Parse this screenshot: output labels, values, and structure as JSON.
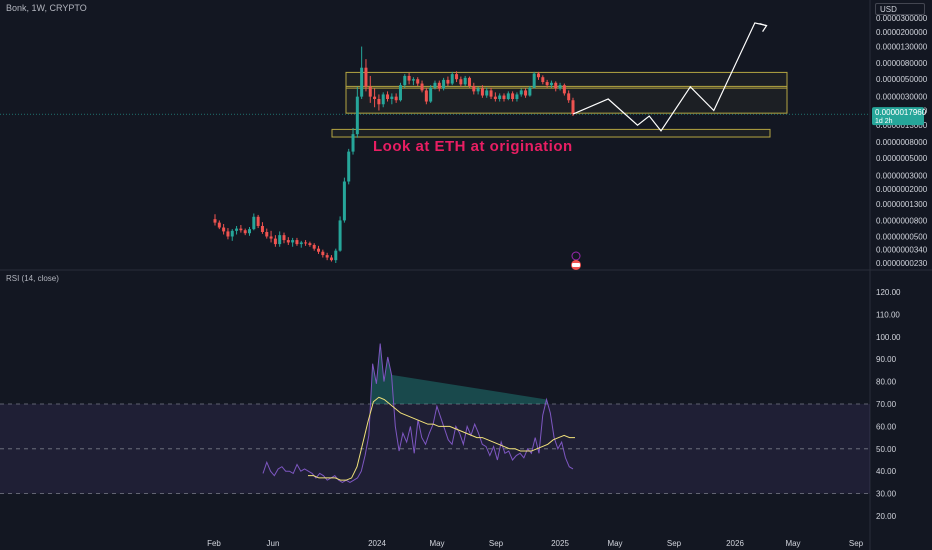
{
  "header": {
    "symbol_line": "Bonk, 1W, CRYPTO"
  },
  "currency": "USD",
  "annotation": {
    "text": "Look at ETH at origination",
    "color": "#e91e63"
  },
  "colors": {
    "bg": "#131722",
    "up": "#26a69a",
    "down": "#ef5350",
    "box": "#b5a642",
    "rsi": "#7e57c2",
    "rsi_ma": "#f2e27a",
    "rsi_band": "#7e57c2",
    "projection": "#ffffff"
  },
  "chart_data": [
    {
      "type": "candlestick",
      "title": "Bonk, 1W, CRYPTO",
      "y_scale": "log",
      "y_ticks": [
        "0.0000300000",
        "0.0000200000",
        "0.0000130000",
        "0.0000080000",
        "0.0000050000",
        "0.0000030000",
        "0.0000020000",
        "0.0000013000",
        "0.0000008000",
        "0.0000005000",
        "0.0000003000",
        "0.0000002000",
        "0.0000001300",
        "0.0000000800",
        "0.0000000500",
        "0.0000000340",
        "0.0000000230"
      ],
      "x_ticks": [
        "Feb",
        "Jun",
        "2024",
        "May",
        "Sep",
        "2025",
        "May",
        "Sep",
        "2026",
        "May",
        "Sep"
      ],
      "last_price": "0.0000017960",
      "last_price_sub": "1d 2h",
      "candles": [
        {
          "o": 8.3e-08,
          "h": 9.6e-08,
          "l": 6.9e-08,
          "c": 7.5e-08
        },
        {
          "o": 7.5e-08,
          "h": 8e-08,
          "l": 6.2e-08,
          "c": 6.5e-08
        },
        {
          "o": 6.5e-08,
          "h": 7.2e-08,
          "l": 5.3e-08,
          "c": 5.8e-08
        },
        {
          "o": 5.8e-08,
          "h": 6.4e-08,
          "l": 4.6e-08,
          "c": 5e-08
        },
        {
          "o": 5e-08,
          "h": 6.2e-08,
          "l": 4.4e-08,
          "c": 5.9e-08
        },
        {
          "o": 5.9e-08,
          "h": 6.8e-08,
          "l": 5.3e-08,
          "c": 6.3e-08
        },
        {
          "o": 6.3e-08,
          "h": 7e-08,
          "l": 5.6e-08,
          "c": 6e-08
        },
        {
          "o": 6e-08,
          "h": 6.3e-08,
          "l": 5.2e-08,
          "c": 5.5e-08
        },
        {
          "o": 5.5e-08,
          "h": 6.6e-08,
          "l": 5.1e-08,
          "c": 6.2e-08
        },
        {
          "o": 6.2e-08,
          "h": 9.8e-08,
          "l": 6e-08,
          "c": 8.9e-08
        },
        {
          "o": 8.9e-08,
          "h": 9.4e-08,
          "l": 6.4e-08,
          "c": 6.8e-08
        },
        {
          "o": 6.8e-08,
          "h": 7.6e-08,
          "l": 5.4e-08,
          "c": 5.7e-08
        },
        {
          "o": 5.7e-08,
          "h": 6.3e-08,
          "l": 4.7e-08,
          "c": 5e-08
        },
        {
          "o": 5e-08,
          "h": 5.9e-08,
          "l": 4.2e-08,
          "c": 4.7e-08
        },
        {
          "o": 4.7e-08,
          "h": 5.2e-08,
          "l": 3.7e-08,
          "c": 4e-08
        },
        {
          "o": 4e-08,
          "h": 5.8e-08,
          "l": 3.7e-08,
          "c": 5.2e-08
        },
        {
          "o": 5.2e-08,
          "h": 5.6e-08,
          "l": 4.1e-08,
          "c": 4.5e-08
        },
        {
          "o": 4.5e-08,
          "h": 4.9e-08,
          "l": 3.9e-08,
          "c": 4.2e-08
        },
        {
          "o": 4.2e-08,
          "h": 4.8e-08,
          "l": 3.7e-08,
          "c": 4.5e-08
        },
        {
          "o": 4.5e-08,
          "h": 4.8e-08,
          "l": 3.8e-08,
          "c": 4e-08
        },
        {
          "o": 4e-08,
          "h": 4.4e-08,
          "l": 3.6e-08,
          "c": 4.2e-08
        },
        {
          "o": 4.2e-08,
          "h": 4.5e-08,
          "l": 3.8e-08,
          "c": 4.1e-08
        },
        {
          "o": 4.1e-08,
          "h": 4.3e-08,
          "l": 3.7e-08,
          "c": 3.9e-08
        },
        {
          "o": 3.9e-08,
          "h": 4.1e-08,
          "l": 3.3e-08,
          "c": 3.5e-08
        },
        {
          "o": 3.5e-08,
          "h": 3.8e-08,
          "l": 3e-08,
          "c": 3.2e-08
        },
        {
          "o": 3.2e-08,
          "h": 3.4e-08,
          "l": 2.7e-08,
          "c": 2.9e-08
        },
        {
          "o": 2.9e-08,
          "h": 3.1e-08,
          "l": 2.5e-08,
          "c": 2.7e-08
        },
        {
          "o": 2.7e-08,
          "h": 2.9e-08,
          "l": 2.4e-08,
          "c": 2.5e-08
        },
        {
          "o": 2.5e-08,
          "h": 3.5e-08,
          "l": 2.3e-08,
          "c": 3.3e-08
        },
        {
          "o": 3.3e-08,
          "h": 9e-08,
          "l": 3.2e-08,
          "c": 8e-08
        },
        {
          "o": 8e-08,
          "h": 2.8e-07,
          "l": 7.5e-08,
          "c": 2.5e-07
        },
        {
          "o": 2.5e-07,
          "h": 6.5e-07,
          "l": 2.3e-07,
          "c": 6e-07
        },
        {
          "o": 6e-07,
          "h": 1.2e-06,
          "l": 5.5e-07,
          "c": 1e-06
        },
        {
          "o": 1e-06,
          "h": 4e-06,
          "l": 9e-07,
          "c": 3e-06
        },
        {
          "o": 3e-06,
          "h": 1.3e-05,
          "l": 2.8e-06,
          "c": 7e-06
        },
        {
          "o": 7e-06,
          "h": 9e-06,
          "l": 3.5e-06,
          "c": 4e-06
        },
        {
          "o": 4e-06,
          "h": 5.5e-06,
          "l": 2.5e-06,
          "c": 3e-06
        },
        {
          "o": 3e-06,
          "h": 3.8e-06,
          "l": 2.2e-06,
          "c": 2.8e-06
        },
        {
          "o": 2.8e-06,
          "h": 3.2e-06,
          "l": 2e-06,
          "c": 2.4e-06
        },
        {
          "o": 2.4e-06,
          "h": 3.4e-06,
          "l": 2.2e-06,
          "c": 3.2e-06
        },
        {
          "o": 3.2e-06,
          "h": 3.5e-06,
          "l": 2.6e-06,
          "c": 2.8e-06
        },
        {
          "o": 2.8e-06,
          "h": 3.3e-06,
          "l": 2.4e-06,
          "c": 3e-06
        },
        {
          "o": 3e-06,
          "h": 3.3e-06,
          "l": 2.5e-06,
          "c": 2.7e-06
        },
        {
          "o": 2.7e-06,
          "h": 4.5e-06,
          "l": 2.6e-06,
          "c": 4.2e-06
        },
        {
          "o": 4.2e-06,
          "h": 5.8e-06,
          "l": 3.9e-06,
          "c": 5.5e-06
        },
        {
          "o": 5.5e-06,
          "h": 6e-06,
          "l": 4.3e-06,
          "c": 4.8e-06
        },
        {
          "o": 4.8e-06,
          "h": 5.3e-06,
          "l": 4.2e-06,
          "c": 5e-06
        },
        {
          "o": 5e-06,
          "h": 5.3e-06,
          "l": 4.1e-06,
          "c": 4.4e-06
        },
        {
          "o": 4.4e-06,
          "h": 4.8e-06,
          "l": 3.4e-06,
          "c": 3.6e-06
        },
        {
          "o": 3.6e-06,
          "h": 3.9e-06,
          "l": 2.4e-06,
          "c": 2.6e-06
        },
        {
          "o": 2.6e-06,
          "h": 4.2e-06,
          "l": 2.5e-06,
          "c": 3.9e-06
        },
        {
          "o": 3.9e-06,
          "h": 4.8e-06,
          "l": 3.7e-06,
          "c": 4.5e-06
        },
        {
          "o": 4.5e-06,
          "h": 4.8e-06,
          "l": 3.5e-06,
          "c": 3.8e-06
        },
        {
          "o": 3.8e-06,
          "h": 5.2e-06,
          "l": 3.6e-06,
          "c": 4.9e-06
        },
        {
          "o": 4.9e-06,
          "h": 5.4e-06,
          "l": 4.1e-06,
          "c": 4.4e-06
        },
        {
          "o": 4.4e-06,
          "h": 6.2e-06,
          "l": 4.2e-06,
          "c": 5.8e-06
        },
        {
          "o": 5.8e-06,
          "h": 6.3e-06,
          "l": 4.6e-06,
          "c": 5e-06
        },
        {
          "o": 5e-06,
          "h": 5.4e-06,
          "l": 4e-06,
          "c": 4.3e-06
        },
        {
          "o": 4.3e-06,
          "h": 5.5e-06,
          "l": 4.1e-06,
          "c": 5.2e-06
        },
        {
          "o": 5.2e-06,
          "h": 5.4e-06,
          "l": 3.9e-06,
          "c": 4.1e-06
        },
        {
          "o": 4.1e-06,
          "h": 4.5e-06,
          "l": 3.2e-06,
          "c": 3.5e-06
        },
        {
          "o": 3.5e-06,
          "h": 4e-06,
          "l": 3.2e-06,
          "c": 3.8e-06
        },
        {
          "o": 3.8e-06,
          "h": 4.2e-06,
          "l": 2.9e-06,
          "c": 3.1e-06
        },
        {
          "o": 3.1e-06,
          "h": 3.9e-06,
          "l": 2.9e-06,
          "c": 3.6e-06
        },
        {
          "o": 3.6e-06,
          "h": 3.9e-06,
          "l": 2.8e-06,
          "c": 3e-06
        },
        {
          "o": 3e-06,
          "h": 3.4e-06,
          "l": 2.6e-06,
          "c": 2.8e-06
        },
        {
          "o": 2.8e-06,
          "h": 3.3e-06,
          "l": 2.6e-06,
          "c": 3.1e-06
        },
        {
          "o": 3.1e-06,
          "h": 3.3e-06,
          "l": 2.6e-06,
          "c": 2.8e-06
        },
        {
          "o": 2.8e-06,
          "h": 3.5e-06,
          "l": 2.7e-06,
          "c": 3.3e-06
        },
        {
          "o": 3.3e-06,
          "h": 3.5e-06,
          "l": 2.6e-06,
          "c": 2.8e-06
        },
        {
          "o": 2.8e-06,
          "h": 3.4e-06,
          "l": 2.6e-06,
          "c": 3.2e-06
        },
        {
          "o": 3.2e-06,
          "h": 3.8e-06,
          "l": 3e-06,
          "c": 3.6e-06
        },
        {
          "o": 3.6e-06,
          "h": 3.8e-06,
          "l": 2.9e-06,
          "c": 3.1e-06
        },
        {
          "o": 3.1e-06,
          "h": 4.1e-06,
          "l": 3e-06,
          "c": 3.9e-06
        },
        {
          "o": 3.9e-06,
          "h": 6.2e-06,
          "l": 3.8e-06,
          "c": 5.9e-06
        },
        {
          "o": 5.9e-06,
          "h": 6.2e-06,
          "l": 4.9e-06,
          "c": 5.3e-06
        },
        {
          "o": 5.3e-06,
          "h": 5.6e-06,
          "l": 4.3e-06,
          "c": 4.6e-06
        },
        {
          "o": 4.6e-06,
          "h": 4.9e-06,
          "l": 3.9e-06,
          "c": 4.2e-06
        },
        {
          "o": 4.2e-06,
          "h": 4.8e-06,
          "l": 3.9e-06,
          "c": 4.5e-06
        },
        {
          "o": 4.5e-06,
          "h": 4.7e-06,
          "l": 3.5e-06,
          "c": 3.8e-06
        },
        {
          "o": 3.8e-06,
          "h": 4.5e-06,
          "l": 3.6e-06,
          "c": 4.2e-06
        },
        {
          "o": 4.2e-06,
          "h": 4.4e-06,
          "l": 3.1e-06,
          "c": 3.3e-06
        },
        {
          "o": 3.3e-06,
          "h": 3.6e-06,
          "l": 2.5e-06,
          "c": 2.7e-06
        },
        {
          "o": 2.7e-06,
          "h": 2.9e-06,
          "l": 1.7e-06,
          "c": 1.8e-06
        }
      ],
      "zones": [
        {
          "top": 6.1e-06,
          "bottom": 1.85e-06
        },
        {
          "top": 4.05e-06,
          "bottom": 3.85e-06
        },
        {
          "top": 1.15e-06,
          "bottom": 9.2e-07
        }
      ],
      "projection": [
        [
          0,
          1.8e-06
        ],
        [
          6,
          2.8e-06
        ],
        [
          11,
          1.3e-06
        ],
        [
          13,
          1.7e-06
        ],
        [
          15,
          1.1e-06
        ],
        [
          20,
          4e-06
        ],
        [
          24,
          2e-06
        ],
        [
          31,
          2.6e-05
        ],
        [
          33,
          2.4e-05
        ]
      ]
    },
    {
      "type": "line",
      "title": "RSI (14, close)",
      "y_ticks": [
        "120.00",
        "110.00",
        "100.00",
        "90.00",
        "80.00",
        "70.00",
        "60.00",
        "50.00",
        "40.00",
        "30.00",
        "20.00"
      ],
      "bands": {
        "upper": 70,
        "middle": 50,
        "lower": 30
      },
      "series": [
        {
          "values": [
            39,
            44,
            40,
            38,
            41,
            42,
            40,
            40,
            39,
            43,
            40,
            41,
            40,
            39,
            37,
            39,
            38,
            36,
            37,
            38,
            36,
            35,
            36,
            35,
            36,
            37,
            40,
            47,
            56,
            88,
            79,
            97,
            80,
            91,
            83,
            60,
            49,
            57,
            53,
            60,
            48,
            63,
            55,
            52,
            57,
            61,
            69,
            64,
            59,
            54,
            52,
            60,
            57,
            52,
            60,
            56,
            61,
            57,
            52,
            51,
            47,
            51,
            45,
            53,
            48,
            49,
            45,
            47,
            48,
            46,
            50,
            48,
            55,
            48,
            65,
            72,
            66,
            55,
            50,
            53,
            46,
            42,
            41
          ]
        },
        {
          "values": [
            38,
            38,
            37,
            37,
            37,
            37,
            36,
            36,
            37,
            42,
            52,
            62,
            71,
            73,
            72,
            70,
            68,
            66,
            65,
            64,
            63,
            62,
            61,
            61,
            60,
            60,
            60,
            59,
            58,
            57,
            56,
            55,
            55,
            54,
            53,
            52,
            51,
            50,
            50,
            49,
            49,
            49,
            50,
            51,
            52,
            54,
            55,
            56,
            55,
            55
          ]
        }
      ]
    }
  ]
}
